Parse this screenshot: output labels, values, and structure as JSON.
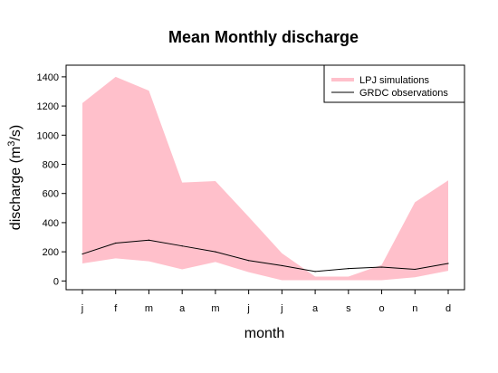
{
  "chart_data": {
    "type": "area",
    "title": "Mean Monthly discharge",
    "xlabel": "month",
    "ylabel_main": "discharge (m",
    "ylabel_sup": "3",
    "ylabel_tail": "/s)",
    "categories": [
      "j",
      "f",
      "m",
      "a",
      "m",
      "j",
      "j",
      "a",
      "s",
      "o",
      "n",
      "d"
    ],
    "ylim": [
      -60,
      1480
    ],
    "yticks": [
      0,
      200,
      400,
      600,
      800,
      1000,
      1200,
      1400
    ],
    "grid": false,
    "legend_position": "top-right",
    "series": [
      {
        "name": "LPJ simulations",
        "kind": "band",
        "color": "#FFC0CB",
        "upper": [
          1220,
          1400,
          1305,
          675,
          685,
          440,
          190,
          30,
          30,
          110,
          540,
          690
        ],
        "lower": [
          120,
          155,
          135,
          80,
          130,
          60,
          5,
          5,
          5,
          5,
          25,
          70
        ]
      },
      {
        "name": "GRDC observations",
        "kind": "line",
        "color": "#000000",
        "values": [
          185,
          260,
          280,
          240,
          200,
          140,
          105,
          65,
          85,
          95,
          80,
          120
        ]
      }
    ]
  }
}
